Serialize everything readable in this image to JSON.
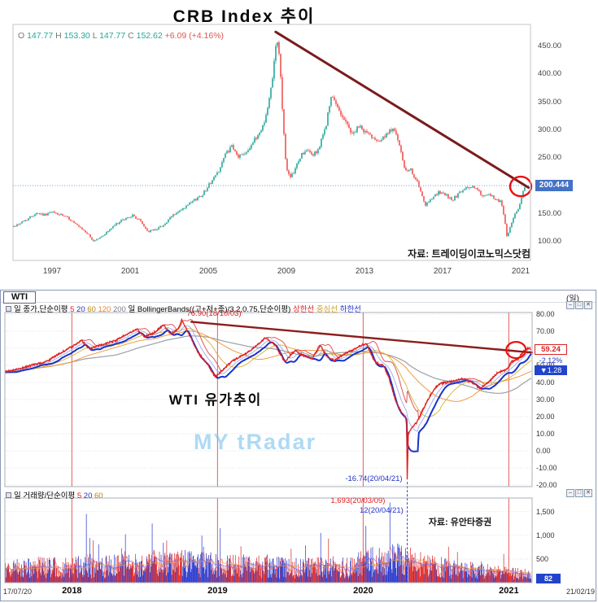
{
  "seed": 42,
  "crb": {
    "title": "CRB  Index  추이",
    "ohlc_runs": [
      {
        "t": "O ",
        "c": "#777777"
      },
      {
        "t": "147.77  ",
        "c": "#26a69a"
      },
      {
        "t": "H ",
        "c": "#777777"
      },
      {
        "t": "153.30  ",
        "c": "#26a69a"
      },
      {
        "t": "L ",
        "c": "#777777"
      },
      {
        "t": "147.77  ",
        "c": "#26a69a"
      },
      {
        "t": "C ",
        "c": "#777777"
      },
      {
        "t": "152.62  ",
        "c": "#26a69a"
      },
      {
        "t": "+6.09 (+4.16%)",
        "c": "#e05252"
      }
    ],
    "y_ticks": [
      "450.00",
      "400.00",
      "350.00",
      "300.00",
      "250.00",
      "150.00",
      "100.00"
    ],
    "price_label": "200.444",
    "x_ticks": [
      "1997",
      "2001",
      "2005",
      "2009",
      "2013",
      "2017",
      "2021"
    ],
    "source": "자료: 트레이딩이코노믹스닷컴",
    "colors": {
      "up": "#26a69a",
      "down": "#ef5350",
      "trend": "#7a1c1c",
      "dotted": "#6f9fd8",
      "price_box": "#4472c4"
    }
  },
  "wti": {
    "tab": "WTI",
    "timeframe": "(일)",
    "legend_runs": [
      {
        "t": "일 종가,단순이평 ",
        "c": "#000000"
      },
      {
        "t": "5 ",
        "c": "#e02020"
      },
      {
        "t": "20 ",
        "c": "#2233cc"
      },
      {
        "t": "60 ",
        "c": "#b8860b"
      },
      {
        "t": "120 ",
        "c": "#f08020"
      },
      {
        "t": "200  ",
        "c": "#808088"
      },
      {
        "t": "일 BollingerBands((고+저+종)/3,2,0.75,단순이평) ",
        "c": "#000000"
      },
      {
        "t": "상한선 ",
        "c": "#e02020"
      },
      {
        "t": "중심선 ",
        "c": "#d4a017"
      },
      {
        "t": "하한선",
        "c": "#2233cc"
      }
    ],
    "vol_legend_runs": [
      {
        "t": "일 거래량/단순이평 ",
        "c": "#000000"
      },
      {
        "t": "5 ",
        "c": "#e02020"
      },
      {
        "t": "20 ",
        "c": "#2233cc"
      },
      {
        "t": "60",
        "c": "#b8860b"
      }
    ],
    "y_ticks": [
      "80.00",
      "70.00",
      "60.00",
      "50.00",
      "40.00",
      "30.00",
      "20.00",
      "10.00",
      "0.00",
      "-10.00",
      "-20.00"
    ],
    "vol_ticks": [
      "1,500",
      "1,000",
      "500"
    ],
    "price_label": "59.24",
    "change_pct": "-2.12%",
    "change": "▼1.28",
    "vol_label": "82",
    "center_label": "WTI  유가추이",
    "watermark": "MY tRadar",
    "source": "자료: 유안타증권",
    "annotations": {
      "peak": {
        "text": "76.90(18/10/03)",
        "color": "#e02020"
      },
      "trough": {
        "text": "-16.74(20/04/21)",
        "color": "#2233cc"
      },
      "vol_max": {
        "text": "1,693(20/03/09)",
        "color": "#e02020"
      },
      "vol_min": {
        "text": "12(20/04/21)",
        "color": "#2233cc"
      }
    },
    "x_ticks": [
      {
        "label": "17/07/20",
        "year": 2017.54,
        "bold": false,
        "align": "left"
      },
      {
        "label": "2018",
        "year": 2018,
        "bold": true
      },
      {
        "label": "2019",
        "year": 2019,
        "bold": true
      },
      {
        "label": "2020",
        "year": 2020,
        "bold": true
      },
      {
        "label": "2021",
        "year": 2021,
        "bold": true
      },
      {
        "label": "21/02/19",
        "year": 2021.16,
        "bold": false,
        "align": "right"
      }
    ],
    "window_icons": [
      {
        "name": "minimize-icon",
        "glyph": "–"
      },
      {
        "name": "restore-icon",
        "glyph": "□"
      },
      {
        "name": "close-icon",
        "glyph": "✕"
      }
    ]
  },
  "chart_data": [
    {
      "id": "crb",
      "type": "candlestick",
      "title": "CRB Index 추이",
      "interval": "monthly",
      "x_range": [
        1995.0,
        2021.5
      ],
      "y_range": [
        63,
        489
      ],
      "current_price": 200.444,
      "anchors": [
        [
          1994.9,
          125
        ],
        [
          1995.3,
          132
        ],
        [
          1995.8,
          142
        ],
        [
          1996.2,
          152
        ],
        [
          1996.6,
          148
        ],
        [
          1997.0,
          153
        ],
        [
          1997.4,
          148
        ],
        [
          1997.8,
          143
        ],
        [
          1998.3,
          128
        ],
        [
          1998.8,
          115
        ],
        [
          1999.1,
          101
        ],
        [
          1999.5,
          108
        ],
        [
          1999.9,
          120
        ],
        [
          2000.3,
          132
        ],
        [
          2000.8,
          142
        ],
        [
          2001.1,
          147
        ],
        [
          2001.5,
          138
        ],
        [
          2001.9,
          118
        ],
        [
          2002.3,
          122
        ],
        [
          2002.8,
          132
        ],
        [
          2003.2,
          148
        ],
        [
          2003.7,
          158
        ],
        [
          2004.2,
          172
        ],
        [
          2004.7,
          185
        ],
        [
          2005.1,
          205
        ],
        [
          2005.5,
          225
        ],
        [
          2005.9,
          258
        ],
        [
          2006.2,
          270
        ],
        [
          2006.5,
          252
        ],
        [
          2006.9,
          260
        ],
        [
          2007.3,
          278
        ],
        [
          2007.7,
          300
        ],
        [
          2008.0,
          330
        ],
        [
          2008.25,
          385
        ],
        [
          2008.5,
          468
        ],
        [
          2008.65,
          430
        ],
        [
          2008.8,
          330
        ],
        [
          2009.0,
          230
        ],
        [
          2009.2,
          212
        ],
        [
          2009.5,
          235
        ],
        [
          2009.8,
          258
        ],
        [
          2010.1,
          262
        ],
        [
          2010.4,
          255
        ],
        [
          2010.7,
          270
        ],
        [
          2011.0,
          305
        ],
        [
          2011.3,
          360
        ],
        [
          2011.5,
          348
        ],
        [
          2011.8,
          330
        ],
        [
          2012.1,
          310
        ],
        [
          2012.4,
          292
        ],
        [
          2012.7,
          306
        ],
        [
          2013.0,
          298
        ],
        [
          2013.4,
          288
        ],
        [
          2013.8,
          282
        ],
        [
          2014.2,
          292
        ],
        [
          2014.5,
          308
        ],
        [
          2014.8,
          268
        ],
        [
          2015.1,
          225
        ],
        [
          2015.4,
          228
        ],
        [
          2015.8,
          198
        ],
        [
          2016.1,
          163
        ],
        [
          2016.4,
          178
        ],
        [
          2016.8,
          188
        ],
        [
          2017.1,
          185
        ],
        [
          2017.5,
          175
        ],
        [
          2017.9,
          188
        ],
        [
          2018.2,
          195
        ],
        [
          2018.5,
          200
        ],
        [
          2018.8,
          192
        ],
        [
          2019.1,
          180
        ],
        [
          2019.4,
          184
        ],
        [
          2019.7,
          176
        ],
        [
          2020.0,
          172
        ],
        [
          2020.15,
          145
        ],
        [
          2020.3,
          108
        ],
        [
          2020.5,
          132
        ],
        [
          2020.7,
          148
        ],
        [
          2020.9,
          162
        ],
        [
          2021.05,
          182
        ],
        [
          2021.25,
          199
        ]
      ],
      "trendline": {
        "from": [
          2008.45,
          476
        ],
        "to": [
          2021.4,
          197
        ]
      },
      "highlight_circle": [
        2021.0,
        199
      ]
    },
    {
      "id": "wti_price",
      "type": "line",
      "title": "WTI 유가추이",
      "interval": "daily",
      "x_range": [
        2017.54,
        2021.16
      ],
      "y_range": [
        -22,
        82
      ],
      "current_price": 59.24,
      "peak": {
        "x": 2018.755,
        "y": 76.9
      },
      "trough": {
        "x": 2020.303,
        "y": -16.74
      },
      "anchors": [
        [
          2017.54,
          46.3
        ],
        [
          2017.62,
          47.5
        ],
        [
          2017.72,
          50
        ],
        [
          2017.82,
          52
        ],
        [
          2017.92,
          57
        ],
        [
          2018.0,
          61
        ],
        [
          2018.07,
          64.5
        ],
        [
          2018.12,
          59.5
        ],
        [
          2018.2,
          62
        ],
        [
          2018.3,
          64.5
        ],
        [
          2018.37,
          68
        ],
        [
          2018.45,
          71
        ],
        [
          2018.5,
          66.5
        ],
        [
          2018.56,
          69
        ],
        [
          2018.63,
          73.5
        ],
        [
          2018.68,
          68.5
        ],
        [
          2018.73,
          71
        ],
        [
          2018.755,
          76.5
        ],
        [
          2018.8,
          69
        ],
        [
          2018.87,
          57
        ],
        [
          2018.93,
          51
        ],
        [
          2018.985,
          43
        ],
        [
          2019.03,
          47
        ],
        [
          2019.1,
          52.5
        ],
        [
          2019.2,
          57
        ],
        [
          2019.3,
          64
        ],
        [
          2019.33,
          66.2
        ],
        [
          2019.4,
          61.5
        ],
        [
          2019.46,
          52
        ],
        [
          2019.53,
          58.5
        ],
        [
          2019.6,
          55.5
        ],
        [
          2019.65,
          54
        ],
        [
          2019.705,
          62
        ],
        [
          2019.75,
          55
        ],
        [
          2019.8,
          53
        ],
        [
          2019.88,
          57
        ],
        [
          2019.95,
          60
        ],
        [
          2020.02,
          63
        ],
        [
          2020.08,
          52
        ],
        [
          2020.14,
          50
        ],
        [
          2020.18,
          42
        ],
        [
          2020.22,
          30
        ],
        [
          2020.26,
          23
        ],
        [
          2020.29,
          20
        ],
        [
          2020.3,
          14
        ],
        [
          2020.303,
          -16.74
        ],
        [
          2020.31,
          10
        ],
        [
          2020.33,
          13
        ],
        [
          2020.37,
          17
        ],
        [
          2020.42,
          26
        ],
        [
          2020.47,
          34
        ],
        [
          2020.52,
          39
        ],
        [
          2020.6,
          40.5
        ],
        [
          2020.68,
          42
        ],
        [
          2020.75,
          40
        ],
        [
          2020.8,
          36.5
        ],
        [
          2020.86,
          40
        ],
        [
          2020.92,
          45.5
        ],
        [
          2020.98,
          47.5
        ],
        [
          2021.02,
          52
        ],
        [
          2021.06,
          53.5
        ],
        [
          2021.1,
          58
        ],
        [
          2021.13,
          60
        ],
        [
          2021.155,
          59.24
        ]
      ],
      "series": [
        {
          "name": "ma200",
          "kind": "ma",
          "window": 200,
          "color": "#9aa0a8",
          "width": 1.2
        },
        {
          "name": "ma120",
          "kind": "ma",
          "window": 120,
          "color": "#f09030",
          "width": 0.9
        },
        {
          "name": "ma60",
          "kind": "ma",
          "window": 60,
          "color": "#d8b030",
          "width": 0.9
        },
        {
          "name": "bb-upper",
          "kind": "bb_upper",
          "color": "#e05555",
          "width": 1.0
        },
        {
          "name": "bb-lower",
          "kind": "bb_lower",
          "color": "#1833cc",
          "width": 2.0
        },
        {
          "name": "ma20",
          "kind": "ma",
          "window": 20,
          "color": "#8f9fe8",
          "width": 0.8
        },
        {
          "name": "close",
          "kind": "close",
          "color": "#e02020",
          "width": 1.3
        }
      ],
      "trendline": {
        "from": [
          2018.82,
          75.5
        ],
        "to": [
          2021.16,
          57.5
        ]
      },
      "highlight_circle": [
        2021.05,
        59
      ]
    },
    {
      "id": "wti_volume",
      "type": "bar",
      "x_range": [
        2017.54,
        2021.16
      ],
      "y_range": [
        0,
        1800
      ],
      "max": {
        "x": 2020.185,
        "y": 1693
      },
      "min": {
        "x": 2020.31,
        "y": 12
      },
      "current": 82,
      "up_color": "#dd2222",
      "down_color": "#2233cc",
      "regimes": [
        [
          2017.54,
          0.95
        ],
        [
          2018.2,
          1.0
        ],
        [
          2018.75,
          1.25
        ],
        [
          2019.0,
          1.1
        ],
        [
          2019.5,
          0.95
        ],
        [
          2019.9,
          1.0
        ],
        [
          2020.12,
          1.45
        ],
        [
          2020.25,
          1.5
        ],
        [
          2020.45,
          1.05
        ],
        [
          2020.7,
          0.8
        ],
        [
          2020.95,
          0.65
        ],
        [
          2021.155,
          0.5
        ]
      ],
      "spikes": [
        [
          2018.1,
          1450
        ],
        [
          2018.55,
          1250
        ],
        [
          2019.02,
          1150
        ],
        [
          2019.71,
          1050
        ],
        [
          2020.02,
          1200
        ],
        [
          2020.185,
          1693
        ],
        [
          2020.31,
          12
        ]
      ],
      "mas": [
        {
          "window": 5,
          "color": "#f26868"
        },
        {
          "window": 20,
          "color": "#5868ee"
        },
        {
          "window": 60,
          "color": "#f0a030"
        }
      ]
    }
  ]
}
